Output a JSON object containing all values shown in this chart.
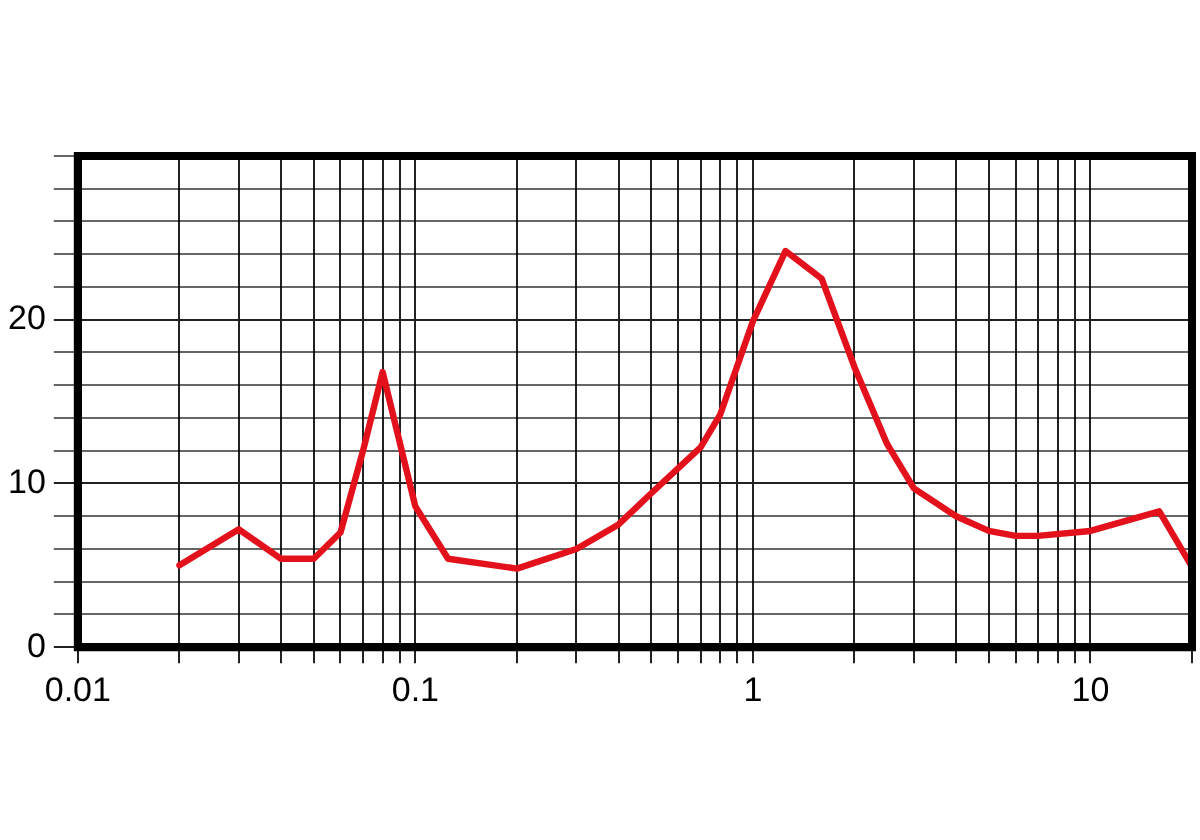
{
  "chart_data": {
    "type": "line",
    "log": "x",
    "grid": true,
    "legend": false,
    "marker": "none",
    "line_style": "solid",
    "x": [
      0.02,
      0.03,
      0.04,
      0.05,
      0.06,
      0.07,
      0.08,
      0.1,
      0.125,
      0.2,
      0.3,
      0.4,
      0.5,
      0.7,
      0.8,
      1,
      1.25,
      1.6,
      2,
      2.5,
      3,
      4,
      5,
      6,
      7,
      10,
      16,
      20
    ],
    "series": [
      {
        "color": "#e3111b",
        "values": [
          5.0,
          7.2,
          5.4,
          5.4,
          7.0,
          12,
          16.8,
          8.6,
          5.4,
          4.8,
          6.0,
          7.5,
          9.4,
          12.2,
          14.2,
          19.9,
          24.2,
          22.5,
          17.1,
          12.4,
          9.7,
          8.0,
          7.1,
          6.8,
          6.8,
          7.1,
          8.3,
          4.9
        ]
      }
    ],
    "xlim": [
      0.01,
      20
    ],
    "xticks": [
      0.01,
      {
        "value": 0.02,
        "label": null
      },
      {
        "value": 0.03,
        "label": null
      },
      {
        "value": 0.04,
        "label": null
      },
      {
        "value": 0.05,
        "label": null
      },
      {
        "value": 0.06,
        "label": null
      },
      {
        "value": 0.07,
        "label": null
      },
      {
        "value": 0.08,
        "label": null
      },
      {
        "value": 0.09,
        "label": null
      },
      0.1,
      {
        "value": 0.2,
        "label": null
      },
      {
        "value": 0.3,
        "label": null
      },
      {
        "value": 0.4,
        "label": null
      },
      {
        "value": 0.5,
        "label": null
      },
      {
        "value": 0.6,
        "label": null
      },
      {
        "value": 0.7,
        "label": null
      },
      {
        "value": 0.8,
        "label": null
      },
      {
        "value": 0.9,
        "label": null
      },
      1,
      {
        "value": 2,
        "label": null
      },
      {
        "value": 3,
        "label": null
      },
      {
        "value": 4,
        "label": null
      },
      {
        "value": 5,
        "label": null
      },
      {
        "value": 6,
        "label": null
      },
      {
        "value": 7,
        "label": null
      },
      {
        "value": 8,
        "label": null
      },
      {
        "value": 9,
        "label": null
      },
      10,
      {
        "value": 20,
        "label": null
      }
    ],
    "ylim": [
      0,
      30
    ],
    "yticks": [
      0,
      {
        "value": 2,
        "label": null
      },
      {
        "value": 4,
        "label": null
      },
      {
        "value": 6,
        "label": null
      },
      {
        "value": 8,
        "label": null
      },
      10,
      {
        "value": 12,
        "label": null
      },
      {
        "value": 14,
        "label": null
      },
      {
        "value": 16,
        "label": null
      },
      {
        "value": 18,
        "label": null
      },
      20,
      {
        "value": 22,
        "label": null
      },
      {
        "value": 24,
        "label": null
      },
      {
        "value": 26,
        "label": null
      },
      {
        "value": 28,
        "label": null
      },
      {
        "value": 30,
        "label": null
      }
    ]
  }
}
